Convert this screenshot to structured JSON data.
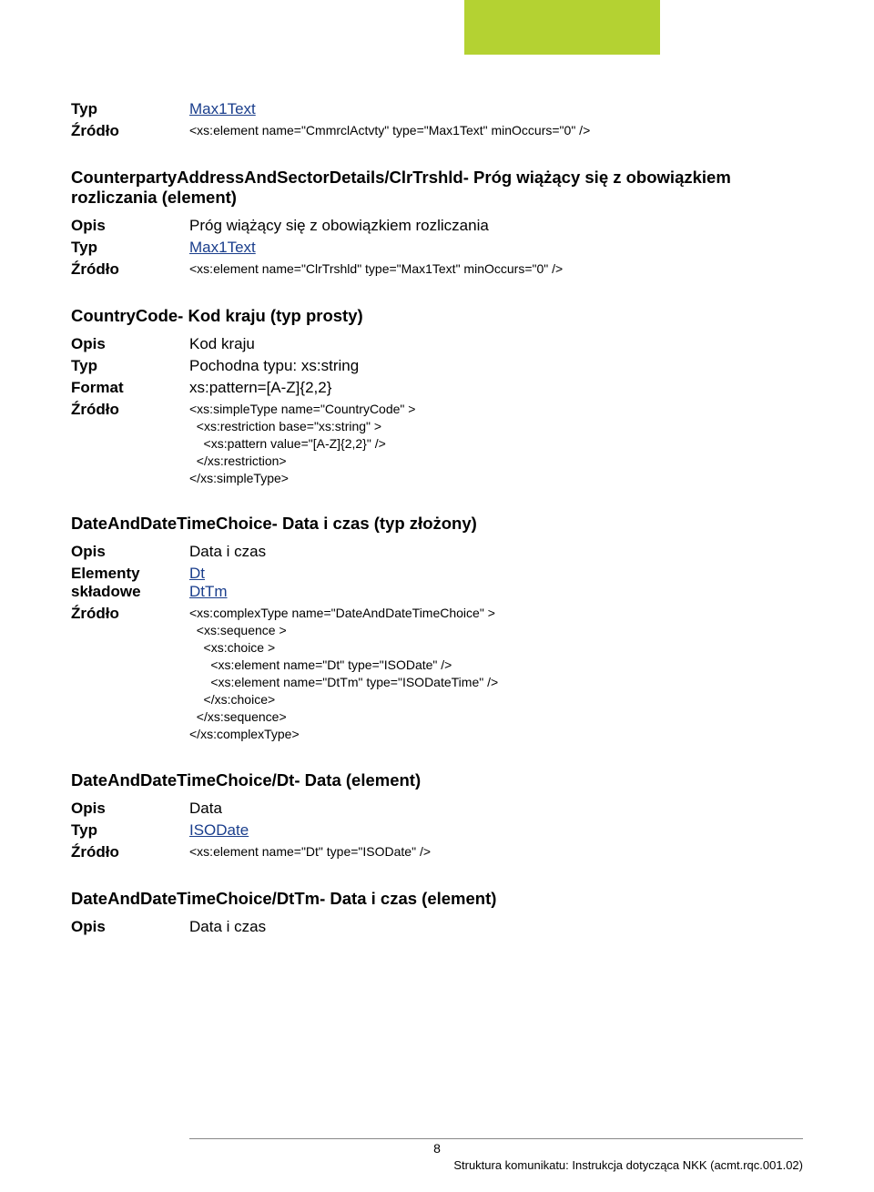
{
  "sections": {
    "s0": {
      "typ_label": "Typ",
      "typ_value": "Max1Text",
      "zrodlo_label": "Źródło",
      "zrodlo_value": "<xs:element name=\"CmmrclActvty\" type=\"Max1Text\" minOccurs=\"0\" />"
    },
    "s1": {
      "title": "CounterpartyAddressAndSectorDetails/ClrTrshld- Próg wiążący się z obowiązkiem rozliczania (element)",
      "opis_label": "Opis",
      "opis_value": "Próg wiążący się z obowiązkiem rozliczania",
      "typ_label": "Typ",
      "typ_value": "Max1Text",
      "zrodlo_label": "Źródło",
      "zrodlo_value": "<xs:element name=\"ClrTrshld\" type=\"Max1Text\" minOccurs=\"0\" />"
    },
    "s2": {
      "title": "CountryCode- Kod kraju (typ prosty)",
      "opis_label": "Opis",
      "opis_value": "Kod kraju",
      "typ_label": "Typ",
      "typ_value": "Pochodna typu: xs:string",
      "format_label": "Format",
      "format_value": "xs:pattern=[A-Z]{2,2}",
      "zrodlo_label": "Źródło",
      "zrodlo_value": "<xs:simpleType name=\"CountryCode\" >\n  <xs:restriction base=\"xs:string\" >\n    <xs:pattern value=\"[A-Z]{2,2}\" />\n  </xs:restriction>\n</xs:simpleType>"
    },
    "s3": {
      "title": "DateAndDateTimeChoice- Data i czas (typ złożony)",
      "opis_label": "Opis",
      "opis_value": "Data i czas",
      "elementy_label": "Elementy składowe",
      "elementy_v1": "Dt",
      "elementy_v2": "DtTm",
      "zrodlo_label": "Źródło",
      "zrodlo_value": "<xs:complexType name=\"DateAndDateTimeChoice\" >\n  <xs:sequence >\n    <xs:choice >\n      <xs:element name=\"Dt\" type=\"ISODate\" />\n      <xs:element name=\"DtTm\" type=\"ISODateTime\" />\n    </xs:choice>\n  </xs:sequence>\n</xs:complexType>"
    },
    "s4": {
      "title": "DateAndDateTimeChoice/Dt- Data (element)",
      "opis_label": "Opis",
      "opis_value": "Data",
      "typ_label": "Typ",
      "typ_value": "ISODate",
      "zrodlo_label": "Źródło",
      "zrodlo_value": "<xs:element name=\"Dt\" type=\"ISODate\" />"
    },
    "s5": {
      "title": "DateAndDateTimeChoice/DtTm- Data i czas (element)",
      "opis_label": "Opis",
      "opis_value": "Data i czas"
    }
  },
  "footer": {
    "page": "8",
    "text": "Struktura komunikatu: Instrukcja dotycząca NKK (acmt.rqc.001.02)"
  }
}
